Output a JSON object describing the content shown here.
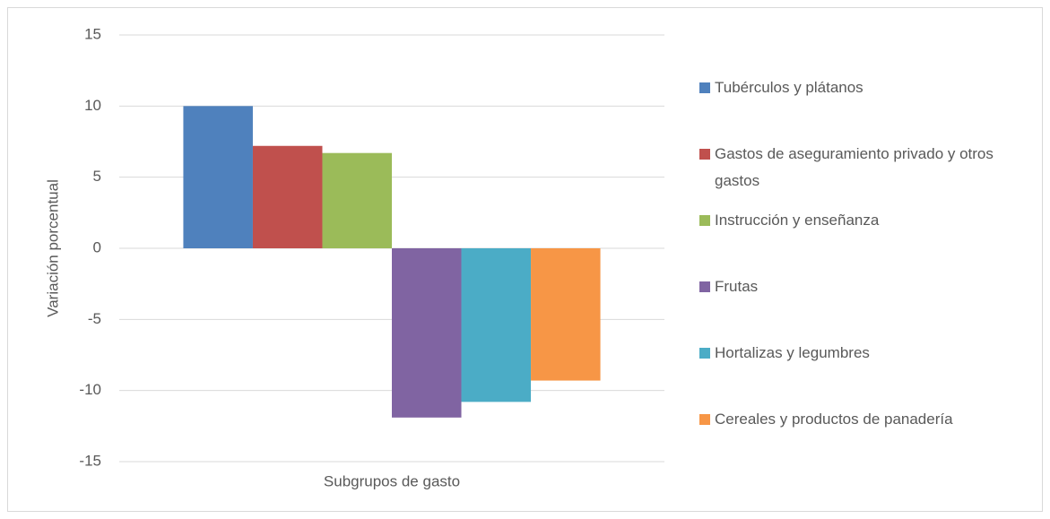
{
  "chart_data": {
    "type": "bar",
    "y_label": "Variación porcentual",
    "x_label": "Subgrupos de gasto",
    "categories": [
      null
    ],
    "series": [
      {
        "name": "Tubérculos y plátanos",
        "color": "#4f81bd",
        "values": [
          10.0
        ]
      },
      {
        "name": "Gastos de aseguramiento privado y otros gastos",
        "color": "#c0504d",
        "values": [
          7.2
        ]
      },
      {
        "name": "Instrucción y enseñanza",
        "color": "#9bbb59",
        "values": [
          6.7
        ]
      },
      {
        "name": "Frutas",
        "color": "#8064a2",
        "values": [
          -11.9
        ]
      },
      {
        "name": "Hortalizas y legumbres",
        "color": "#4bacc6",
        "values": [
          -10.8
        ]
      },
      {
        "name": "Cereales y productos de panadería",
        "color": "#f79646",
        "values": [
          -9.3
        ]
      }
    ],
    "ylim": [
      -15,
      15
    ],
    "yticks": [
      -15,
      -10,
      -5,
      0,
      5,
      10,
      15
    ],
    "grid": true,
    "legend": "right"
  }
}
